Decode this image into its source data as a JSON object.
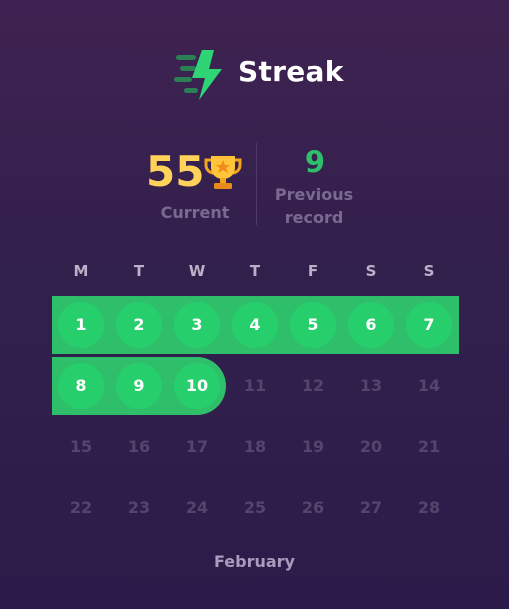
{
  "app": {
    "title": "Streak",
    "logo_icon": "lightning-bolt-icon"
  },
  "stats": {
    "current_value": "55",
    "current_label": "Current",
    "current_icon": "trophy-icon",
    "record_value": "9",
    "record_label_line1": "Previous",
    "record_label_line2": "record"
  },
  "calendar": {
    "weekdays": [
      "M",
      "T",
      "W",
      "T",
      "F",
      "S",
      "S"
    ],
    "weeks": [
      [
        "1",
        "2",
        "3",
        "4",
        "5",
        "6",
        "7"
      ],
      [
        "8",
        "9",
        "10",
        "11",
        "12",
        "13",
        "14"
      ],
      [
        "15",
        "16",
        "17",
        "18",
        "19",
        "20",
        "21"
      ],
      [
        "22",
        "23",
        "24",
        "25",
        "26",
        "27",
        "28"
      ]
    ],
    "streak_days": [
      "1",
      "2",
      "3",
      "4",
      "5",
      "6",
      "7",
      "8",
      "9",
      "10"
    ],
    "month": "February"
  },
  "colors": {
    "background": "#32204c",
    "accent_green": "#2fbf6a",
    "day_circle": "#26cf6c",
    "gold": "#ffd25a",
    "muted_text": "#7c6992"
  }
}
